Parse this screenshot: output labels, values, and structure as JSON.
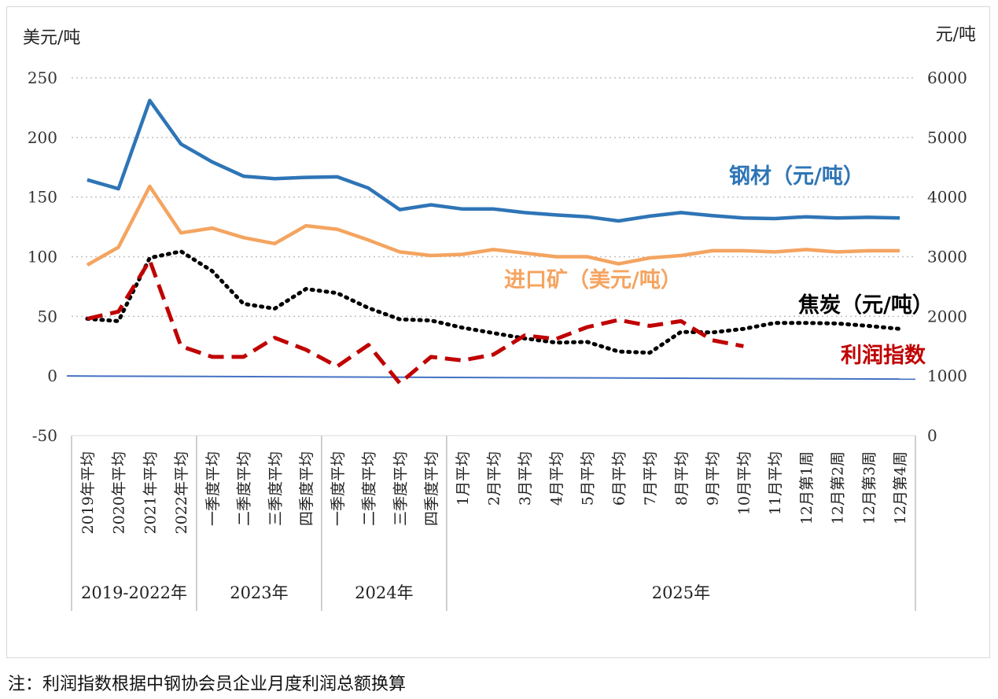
{
  "chart_data": {
    "type": "line",
    "left_axis_unit": "美元/吨",
    "right_axis_unit": "元/吨",
    "y_left": {
      "min": -50,
      "max": 250,
      "ticks": [
        -50,
        0,
        50,
        100,
        150,
        200,
        250
      ]
    },
    "y_right": {
      "min": 0,
      "max": 6000,
      "ticks": [
        0,
        1000,
        2000,
        3000,
        4000,
        5000,
        6000
      ]
    },
    "categories": [
      "2019年平均",
      "2020年平均",
      "2021年平均",
      "2022年平均",
      "一季度平均",
      "二季度平均",
      "三季度平均",
      "四季度平均",
      "一季度平均",
      "二季度平均",
      "三季度平均",
      "四季度平均",
      "1月平均",
      "2月平均",
      "3月平均",
      "4月平均",
      "5月平均",
      "6月平均",
      "7月平均",
      "8月平均",
      "9月平均",
      "10月平均",
      "11月平均",
      "12月第1周",
      "12月第2周",
      "12月第3周",
      "12月第4周"
    ],
    "groups": [
      {
        "label": "2019-2022年",
        "count": 4
      },
      {
        "label": "2023年",
        "count": 4
      },
      {
        "label": "2024年",
        "count": 4
      },
      {
        "label": "2025年",
        "count": 15
      }
    ],
    "series": [
      {
        "name": "钢材（元/吨）",
        "axis": "right",
        "color": "#2e75b6",
        "style": "solid",
        "values": [
          4290,
          4140,
          5620,
          4890,
          4590,
          4350,
          4310,
          4330,
          4340,
          4150,
          3790,
          3870,
          3800,
          3800,
          3740,
          3700,
          3670,
          3600,
          3680,
          3740,
          3690,
          3650,
          3640,
          3670,
          3650,
          3660,
          3650
        ]
      },
      {
        "name": "进口矿（美元/吨）",
        "axis": "left",
        "color": "#f4a460",
        "style": "solid",
        "values": [
          93,
          108,
          159,
          120,
          124,
          116,
          111,
          126,
          123,
          114,
          104,
          101,
          102,
          106,
          103,
          100,
          100,
          94,
          99,
          101,
          105,
          105,
          104,
          106,
          104,
          105,
          105
        ]
      },
      {
        "name": "焦炭（元/吨）",
        "axis": "right",
        "color": "#000000",
        "style": "dotted",
        "values": [
          1960,
          1920,
          2980,
          3090,
          2760,
          2210,
          2130,
          2460,
          2390,
          2140,
          1950,
          1930,
          1810,
          1720,
          1630,
          1560,
          1570,
          1410,
          1390,
          1740,
          1730,
          1790,
          1890,
          1890,
          1880,
          1840,
          1790
        ]
      },
      {
        "name": "利润指数",
        "axis": "left",
        "color": "#c00000",
        "style": "dashed",
        "values": [
          48,
          54,
          97,
          25,
          16,
          16,
          32,
          22,
          8,
          26,
          -6,
          16,
          13,
          18,
          34,
          31,
          41,
          47,
          42,
          46,
          30,
          25,
          null,
          null,
          null,
          null,
          null
        ]
      }
    ],
    "series_labels": [
      "钢材（元/吨）",
      "进口矿（美元/吨）",
      "焦炭（元/吨）",
      "利润指数"
    ],
    "grid": "horizontal-dotted"
  },
  "note": "注：利润指数根据中钢协会员企业月度利润总额换算"
}
